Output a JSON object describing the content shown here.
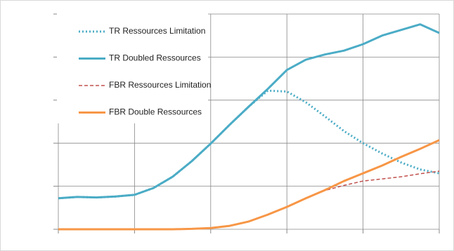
{
  "chart_data": {
    "type": "line",
    "x": [
      0,
      0.25,
      0.5,
      0.75,
      1,
      1.25,
      1.5,
      1.75,
      2,
      2.25,
      2.5,
      2.75,
      3,
      3.25,
      3.5,
      3.75,
      4,
      4.25,
      4.5,
      4.75,
      5
    ],
    "series": [
      {
        "name": "TR Ressources Limitation",
        "color": "#4bacc6",
        "dash": "dotted",
        "values": [
          0.72,
          0.75,
          0.74,
          0.76,
          0.8,
          0.96,
          1.22,
          1.58,
          1.99,
          2.43,
          2.85,
          3.22,
          3.2,
          2.95,
          2.62,
          2.28,
          2.0,
          1.76,
          1.55,
          1.39,
          1.3
        ]
      },
      {
        "name": "TR Doubled Ressources",
        "color": "#4bacc6",
        "dash": "solid",
        "values": [
          0.72,
          0.75,
          0.74,
          0.76,
          0.8,
          0.96,
          1.22,
          1.58,
          1.99,
          2.43,
          2.85,
          3.26,
          3.7,
          3.94,
          4.06,
          4.15,
          4.3,
          4.5,
          4.63,
          4.76,
          4.56
        ]
      },
      {
        "name": "FBR Ressources Limitation",
        "color": "#c0504d",
        "dash": "dashed",
        "values": [
          0,
          0,
          0,
          0,
          0,
          0,
          0,
          0.01,
          0.03,
          0.08,
          0.18,
          0.34,
          0.52,
          0.72,
          0.9,
          1.02,
          1.12,
          1.17,
          1.22,
          1.29,
          1.35
        ]
      },
      {
        "name": "FBR Double Ressources",
        "color": "#f79646",
        "dash": "solid",
        "values": [
          0,
          0,
          0,
          0,
          0,
          0,
          0,
          0.01,
          0.03,
          0.08,
          0.18,
          0.34,
          0.52,
          0.72,
          0.91,
          1.12,
          1.3,
          1.48,
          1.68,
          1.87,
          2.07
        ]
      }
    ],
    "xlim": [
      0,
      5
    ],
    "ylim": [
      0,
      5
    ],
    "xticks": [
      0,
      1,
      2,
      3,
      4,
      5
    ],
    "yticks": [
      0,
      1,
      2,
      3,
      4,
      5
    ],
    "grid": true,
    "legend": "top-left"
  }
}
